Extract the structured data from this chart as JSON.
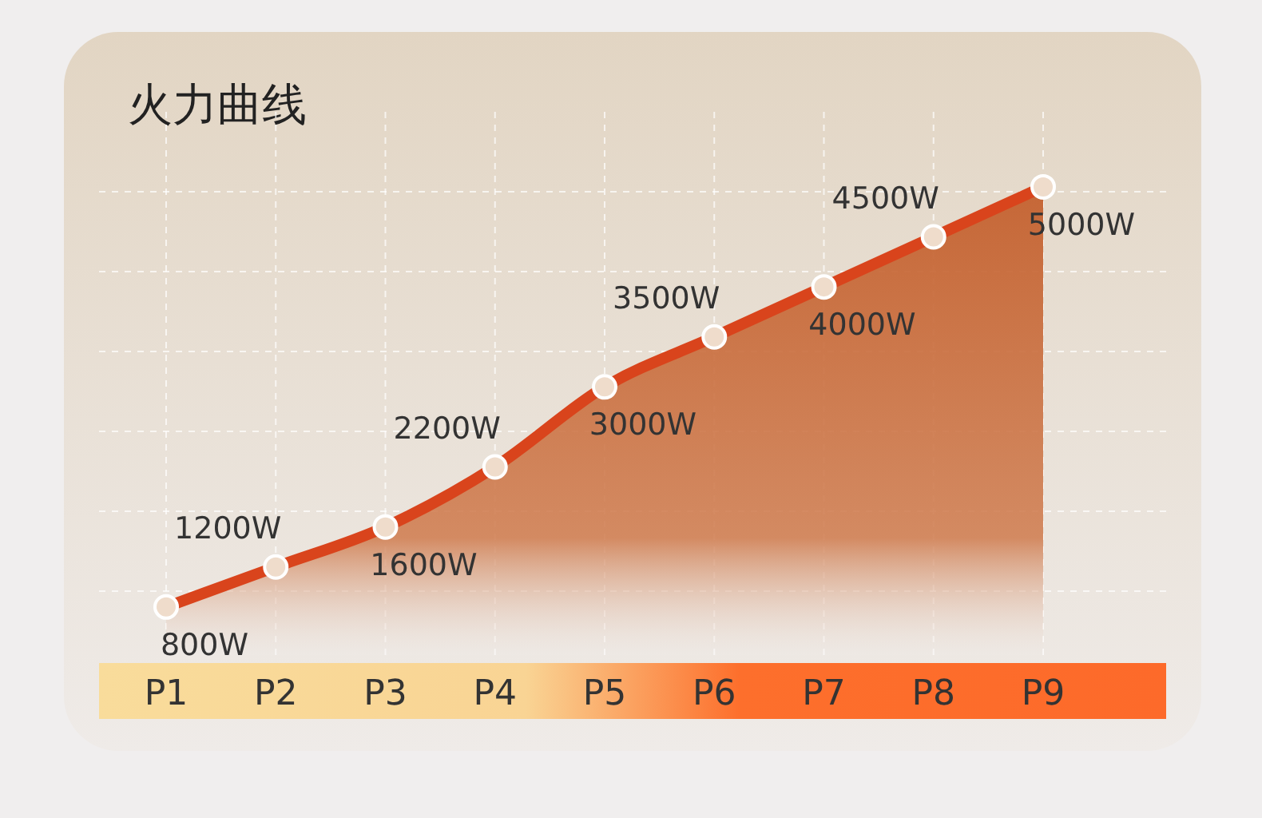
{
  "chart_data": {
    "type": "area",
    "title": "火力曲线",
    "categories": [
      "P1",
      "P2",
      "P3",
      "P4",
      "P5",
      "P6",
      "P7",
      "P8",
      "P9"
    ],
    "series": [
      {
        "color": "#d9441c",
        "values": [
          800,
          1200,
          1600,
          2200,
          3000,
          3500,
          4000,
          4500,
          5000
        ],
        "value_labels": [
          "800W",
          "1200W",
          "1600W",
          "2200W",
          "3000W",
          "3500W",
          "4000W",
          "4500W",
          "5000W"
        ]
      }
    ],
    "grid": true,
    "marker": "circle"
  }
}
